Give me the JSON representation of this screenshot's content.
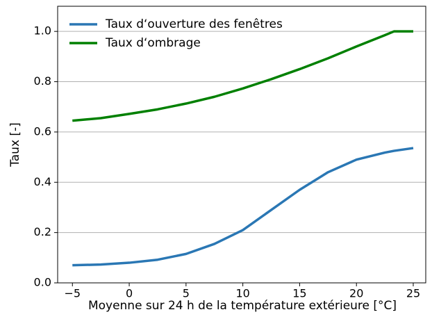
{
  "chart_data": {
    "type": "line",
    "xlabel": "Moyenne sur 24 h de la température extérieure [°C]",
    "ylabel": "Taux [-]",
    "x": [
      -5,
      -2.5,
      0,
      2.5,
      5,
      7.5,
      10,
      12.5,
      15,
      17.5,
      20,
      22.5,
      23.3,
      25
    ],
    "series": [
      {
        "name": "Taux d‘ouverture des fenêtres",
        "color": "#2a77b4",
        "values": [
          0.07,
          0.073,
          0.08,
          0.092,
          0.115,
          0.155,
          0.21,
          0.29,
          0.37,
          0.44,
          0.49,
          0.518,
          0.525,
          0.536
        ]
      },
      {
        "name": "Taux d‘ombrage",
        "color": "#008000",
        "values": [
          0.645,
          0.655,
          0.672,
          0.69,
          0.713,
          0.74,
          0.773,
          0.81,
          0.85,
          0.893,
          0.94,
          0.985,
          1.0,
          1.0
        ]
      }
    ],
    "xlim": [
      -6.3,
      26.1
    ],
    "ylim": [
      0,
      1.1
    ],
    "xticks": [
      {
        "value": -5,
        "label": "−5"
      },
      0,
      5,
      10,
      15,
      20,
      25
    ],
    "yticks": [
      {
        "value": 0,
        "label": "0.0"
      },
      0.2,
      0.4,
      0.6,
      0.8,
      {
        "value": 1,
        "label": "1.0"
      }
    ],
    "grid": "y",
    "legend": "upper-left"
  }
}
